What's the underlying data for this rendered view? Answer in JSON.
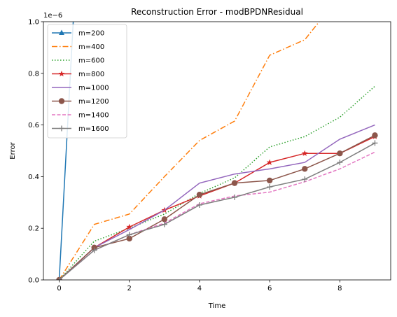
{
  "chart_data": {
    "type": "line",
    "title": "Reconstruction Error - modBPDNResidual",
    "xlabel": "Time",
    "ylabel": "Error",
    "y_offset_text": "1e−6",
    "xlim": [
      -0.45,
      9.45
    ],
    "ylim": [
      0,
      1.0
    ],
    "xticks": [
      0,
      2,
      4,
      6,
      8
    ],
    "yticks": [
      0.0,
      0.2,
      0.4,
      0.6,
      0.8,
      1.0
    ],
    "grid": false,
    "legend_position": "upper-left",
    "x": [
      0,
      1,
      2,
      3,
      4,
      5,
      6,
      7,
      8,
      9
    ],
    "series": [
      {
        "name": "m=200",
        "color": "#1f77b4",
        "dash": "solid",
        "marker": "triangle",
        "values": [
          0.0,
          2.5,
          5.0,
          7.5,
          10.0,
          12.5,
          15.0,
          17.5,
          20.0,
          22.5
        ]
      },
      {
        "name": "m=400",
        "color": "#ff7f0e",
        "dash": "dashdot",
        "marker": "none",
        "values": [
          0.0,
          0.215,
          0.255,
          0.4,
          0.54,
          0.615,
          0.87,
          0.93,
          1.1,
          1.3
        ]
      },
      {
        "name": "m=600",
        "color": "#2ca02c",
        "dash": "dotted",
        "marker": "none",
        "values": [
          0.0,
          0.15,
          0.2,
          0.255,
          0.335,
          0.395,
          0.515,
          0.555,
          0.63,
          0.75
        ]
      },
      {
        "name": "m=800",
        "color": "#d62728",
        "dash": "solid",
        "marker": "star",
        "values": [
          0.0,
          0.125,
          0.205,
          0.27,
          0.325,
          0.375,
          0.455,
          0.49,
          0.49,
          0.555
        ]
      },
      {
        "name": "m=1000",
        "color": "#9467bd",
        "dash": "solid",
        "marker": "none",
        "values": [
          0.0,
          0.125,
          0.195,
          0.27,
          0.375,
          0.41,
          0.43,
          0.455,
          0.545,
          0.6
        ]
      },
      {
        "name": "m=1200",
        "color": "#8c564b",
        "dash": "solid",
        "marker": "circle",
        "values": [
          0.0,
          0.125,
          0.16,
          0.235,
          0.33,
          0.375,
          0.385,
          0.43,
          0.49,
          0.56
        ]
      },
      {
        "name": "m=1400",
        "color": "#e377c2",
        "dash": "dashed",
        "marker": "none",
        "values": [
          0.0,
          0.115,
          0.175,
          0.22,
          0.295,
          0.325,
          0.34,
          0.38,
          0.43,
          0.495
        ]
      },
      {
        "name": "m=1600",
        "color": "#7f7f7f",
        "dash": "solid",
        "marker": "plus",
        "values": [
          0.0,
          0.115,
          0.175,
          0.215,
          0.29,
          0.32,
          0.36,
          0.39,
          0.455,
          0.53
        ]
      }
    ]
  }
}
